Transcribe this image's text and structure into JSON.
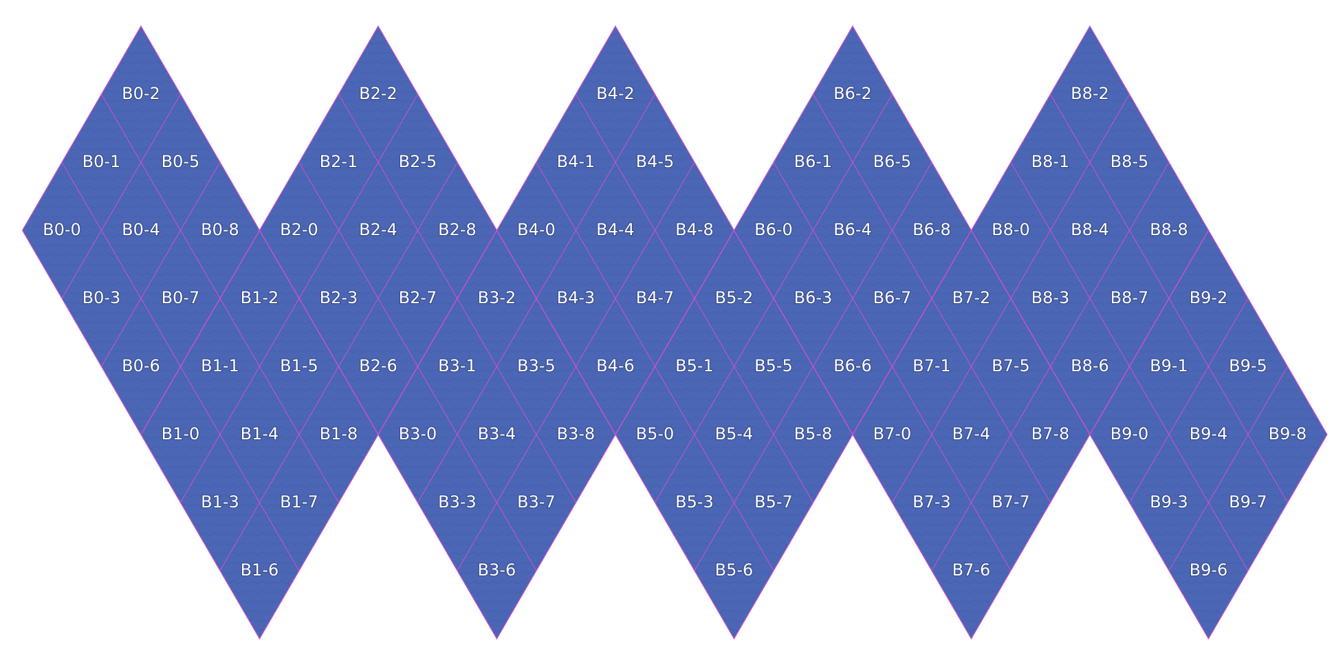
{
  "colors": {
    "ocean": "#4a66b4",
    "ocean_deep": "#3d58a3",
    "land": "#8a8a5a",
    "land_high": "#c99aa0",
    "ice": "#d79aa0",
    "grid": "#d24fd2",
    "label": "#ffffff",
    "background": "#ffffff"
  },
  "grid": {
    "diamond_count": 5,
    "subdivisions": 3
  },
  "cells": [
    {
      "id": "B0-0",
      "label": "B0-0"
    },
    {
      "id": "B0-1",
      "label": "B0-1"
    },
    {
      "id": "B0-2",
      "label": "B0-2"
    },
    {
      "id": "B0-3",
      "label": "B0-3"
    },
    {
      "id": "B0-4",
      "label": "B0-4"
    },
    {
      "id": "B0-5",
      "label": "B0-5"
    },
    {
      "id": "B0-6",
      "label": "B0-6"
    },
    {
      "id": "B0-7",
      "label": "B0-7"
    },
    {
      "id": "B0-8",
      "label": "B0-8"
    },
    {
      "id": "B1-0",
      "label": "B1-0"
    },
    {
      "id": "B1-1",
      "label": "B1-1"
    },
    {
      "id": "B1-2",
      "label": "B1-2"
    },
    {
      "id": "B1-3",
      "label": "B1-3"
    },
    {
      "id": "B1-4",
      "label": "B1-4"
    },
    {
      "id": "B1-5",
      "label": "B1-5"
    },
    {
      "id": "B1-6",
      "label": "B1-6"
    },
    {
      "id": "B1-7",
      "label": "B1-7"
    },
    {
      "id": "B1-8",
      "label": "B1-8"
    },
    {
      "id": "B2-0",
      "label": "B2-0"
    },
    {
      "id": "B2-1",
      "label": "B2-1"
    },
    {
      "id": "B2-2",
      "label": "B2-2"
    },
    {
      "id": "B2-3",
      "label": "B2-3"
    },
    {
      "id": "B2-4",
      "label": "B2-4"
    },
    {
      "id": "B2-5",
      "label": "B2-5"
    },
    {
      "id": "B2-6",
      "label": "B2-6"
    },
    {
      "id": "B2-7",
      "label": "B2-7"
    },
    {
      "id": "B2-8",
      "label": "B2-8"
    },
    {
      "id": "B3-0",
      "label": "B3-0"
    },
    {
      "id": "B3-1",
      "label": "B3-1"
    },
    {
      "id": "B3-2",
      "label": "B3-2"
    },
    {
      "id": "B3-3",
      "label": "B3-3"
    },
    {
      "id": "B3-4",
      "label": "B3-4"
    },
    {
      "id": "B3-5",
      "label": "B3-5"
    },
    {
      "id": "B3-6",
      "label": "B3-6"
    },
    {
      "id": "B3-7",
      "label": "B3-7"
    },
    {
      "id": "B3-8",
      "label": "B3-8"
    },
    {
      "id": "B4-0",
      "label": "B4-0"
    },
    {
      "id": "B4-1",
      "label": "B4-1"
    },
    {
      "id": "B4-2",
      "label": "B4-2"
    },
    {
      "id": "B4-3",
      "label": "B4-3"
    },
    {
      "id": "B4-4",
      "label": "B4-4"
    },
    {
      "id": "B4-5",
      "label": "B4-5"
    },
    {
      "id": "B4-6",
      "label": "B4-6"
    },
    {
      "id": "B4-7",
      "label": "B4-7"
    },
    {
      "id": "B4-8",
      "label": "B4-8"
    },
    {
      "id": "B5-0",
      "label": "B5-0"
    },
    {
      "id": "B5-1",
      "label": "B5-1"
    },
    {
      "id": "B5-2",
      "label": "B5-2"
    },
    {
      "id": "B5-3",
      "label": "B5-3"
    },
    {
      "id": "B5-4",
      "label": "B5-4"
    },
    {
      "id": "B5-5",
      "label": "B5-5"
    },
    {
      "id": "B5-6",
      "label": "B5-6"
    },
    {
      "id": "B5-7",
      "label": "B5-7"
    },
    {
      "id": "B5-8",
      "label": "B5-8"
    },
    {
      "id": "B6-0",
      "label": "B6-0"
    },
    {
      "id": "B6-1",
      "label": "B6-1"
    },
    {
      "id": "B6-2",
      "label": "B6-2"
    },
    {
      "id": "B6-3",
      "label": "B6-3"
    },
    {
      "id": "B6-4",
      "label": "B6-4"
    },
    {
      "id": "B6-5",
      "label": "B6-5"
    },
    {
      "id": "B6-6",
      "label": "B6-6"
    },
    {
      "id": "B6-7",
      "label": "B6-7"
    },
    {
      "id": "B6-8",
      "label": "B6-8"
    },
    {
      "id": "B7-0",
      "label": "B7-0"
    },
    {
      "id": "B7-1",
      "label": "B7-1"
    },
    {
      "id": "B7-2",
      "label": "B7-2"
    },
    {
      "id": "B7-3",
      "label": "B7-3"
    },
    {
      "id": "B7-4",
      "label": "B7-4"
    },
    {
      "id": "B7-5",
      "label": "B7-5"
    },
    {
      "id": "B7-6",
      "label": "B7-6"
    },
    {
      "id": "B7-7",
      "label": "B7-7"
    },
    {
      "id": "B7-8",
      "label": "B7-8"
    },
    {
      "id": "B8-0",
      "label": "B8-0"
    },
    {
      "id": "B8-1",
      "label": "B8-1"
    },
    {
      "id": "B8-2",
      "label": "B8-2"
    },
    {
      "id": "B8-3",
      "label": "B8-3"
    },
    {
      "id": "B8-4",
      "label": "B8-4"
    },
    {
      "id": "B8-5",
      "label": "B8-5"
    },
    {
      "id": "B8-6",
      "label": "B8-6"
    },
    {
      "id": "B8-7",
      "label": "B8-7"
    },
    {
      "id": "B8-8",
      "label": "B8-8"
    },
    {
      "id": "B9-0",
      "label": "B9-0"
    },
    {
      "id": "B9-1",
      "label": "B9-1"
    },
    {
      "id": "B9-2",
      "label": "B9-2"
    },
    {
      "id": "B9-3",
      "label": "B9-3"
    },
    {
      "id": "B9-4",
      "label": "B9-4"
    },
    {
      "id": "B9-5",
      "label": "B9-5"
    },
    {
      "id": "B9-6",
      "label": "B9-6"
    },
    {
      "id": "B9-7",
      "label": "B9-7"
    },
    {
      "id": "B9-8",
      "label": "B9-8"
    }
  ]
}
